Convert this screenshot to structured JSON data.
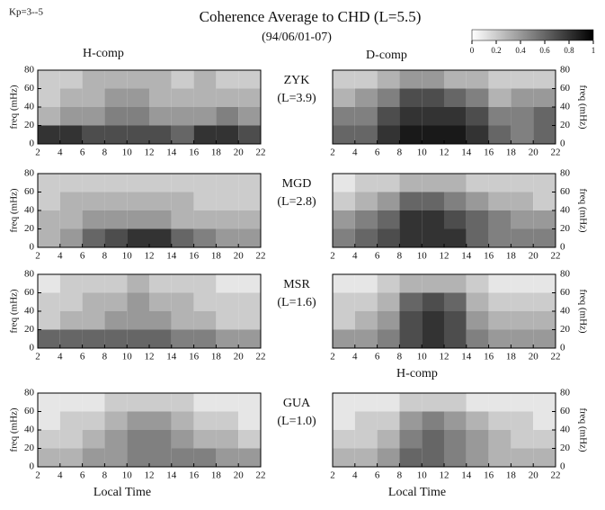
{
  "figure": {
    "kp": "Kp=3--5",
    "title": "Coherence Average to CHD (L=5.5)",
    "subtitle": "(94/06/01-07)",
    "h_header": "H-comp",
    "d_header": "D-comp",
    "colorbar": {
      "lim": [
        0,
        1
      ],
      "ticks": [
        0,
        0.2,
        0.4,
        0.6,
        0.8,
        1
      ]
    },
    "stations": [
      {
        "name": "ZYK",
        "l": "(L=3.9)"
      },
      {
        "name": "MGD",
        "l": "(L=2.8)"
      },
      {
        "name": "MSR",
        "l": "(L=1.6)"
      },
      {
        "name": "GUA",
        "l": "(L=1.0)"
      }
    ]
  },
  "chart_data": [
    {
      "type": "heatmap",
      "yaxis_side": "left",
      "ylabel": "freq (mHz)",
      "xbins": [
        2,
        4,
        6,
        8,
        10,
        12,
        14,
        16,
        18,
        20,
        22
      ],
      "ybins": [
        0,
        20,
        40,
        60,
        80
      ],
      "xlim": [
        2,
        22
      ],
      "ylim": [
        0,
        80
      ],
      "xticks": [
        2,
        4,
        6,
        8,
        10,
        12,
        14,
        16,
        18,
        20,
        22
      ],
      "yticks": [
        0,
        20,
        40,
        60,
        80
      ],
      "values": [
        [
          0.8,
          0.8,
          0.7,
          0.7,
          0.7,
          0.7,
          0.6,
          0.8,
          0.8,
          0.7
        ],
        [
          0.3,
          0.4,
          0.4,
          0.5,
          0.5,
          0.4,
          0.4,
          0.4,
          0.5,
          0.4
        ],
        [
          0.2,
          0.3,
          0.3,
          0.4,
          0.4,
          0.3,
          0.3,
          0.3,
          0.3,
          0.3
        ],
        [
          0.2,
          0.2,
          0.3,
          0.3,
          0.3,
          0.3,
          0.2,
          0.3,
          0.2,
          0.2
        ]
      ]
    },
    {
      "type": "heatmap",
      "yaxis_side": "right",
      "ylabel": "freq (mHz)",
      "xbins": [
        2,
        4,
        6,
        8,
        10,
        12,
        14,
        16,
        18,
        20,
        22
      ],
      "ybins": [
        0,
        20,
        40,
        60,
        80
      ],
      "xlim": [
        2,
        22
      ],
      "ylim": [
        0,
        80
      ],
      "xticks": [
        2,
        4,
        6,
        8,
        10,
        12,
        14,
        16,
        18,
        20,
        22
      ],
      "yticks": [
        0,
        20,
        40,
        60,
        80
      ],
      "values": [
        [
          0.6,
          0.6,
          0.8,
          0.9,
          0.9,
          0.9,
          0.8,
          0.6,
          0.5,
          0.6
        ],
        [
          0.5,
          0.5,
          0.7,
          0.8,
          0.8,
          0.8,
          0.7,
          0.5,
          0.5,
          0.6
        ],
        [
          0.3,
          0.4,
          0.5,
          0.7,
          0.7,
          0.6,
          0.5,
          0.3,
          0.4,
          0.4
        ],
        [
          0.2,
          0.2,
          0.3,
          0.4,
          0.4,
          0.3,
          0.3,
          0.2,
          0.2,
          0.2
        ]
      ]
    },
    {
      "type": "heatmap",
      "yaxis_side": "left",
      "ylabel": "freq (mHz)",
      "xbins": [
        2,
        4,
        6,
        8,
        10,
        12,
        14,
        16,
        18,
        20,
        22
      ],
      "ybins": [
        0,
        20,
        40,
        60,
        80
      ],
      "xlim": [
        2,
        22
      ],
      "ylim": [
        0,
        80
      ],
      "xticks": [
        2,
        4,
        6,
        8,
        10,
        12,
        14,
        16,
        18,
        20,
        22
      ],
      "yticks": [
        0,
        20,
        40,
        60,
        80
      ],
      "values": [
        [
          0.3,
          0.4,
          0.6,
          0.7,
          0.8,
          0.8,
          0.6,
          0.5,
          0.4,
          0.4
        ],
        [
          0.3,
          0.3,
          0.4,
          0.4,
          0.4,
          0.4,
          0.3,
          0.3,
          0.3,
          0.3
        ],
        [
          0.2,
          0.3,
          0.3,
          0.3,
          0.3,
          0.3,
          0.3,
          0.2,
          0.2,
          0.2
        ],
        [
          0.2,
          0.2,
          0.2,
          0.2,
          0.2,
          0.2,
          0.2,
          0.2,
          0.2,
          0.2
        ]
      ]
    },
    {
      "type": "heatmap",
      "yaxis_side": "right",
      "ylabel": "freq (mHz)",
      "xbins": [
        2,
        4,
        6,
        8,
        10,
        12,
        14,
        16,
        18,
        20,
        22
      ],
      "ybins": [
        0,
        20,
        40,
        60,
        80
      ],
      "xlim": [
        2,
        22
      ],
      "ylim": [
        0,
        80
      ],
      "xticks": [
        2,
        4,
        6,
        8,
        10,
        12,
        14,
        16,
        18,
        20,
        22
      ],
      "yticks": [
        0,
        20,
        40,
        60,
        80
      ],
      "values": [
        [
          0.5,
          0.6,
          0.7,
          0.8,
          0.8,
          0.8,
          0.6,
          0.5,
          0.5,
          0.5
        ],
        [
          0.4,
          0.5,
          0.6,
          0.8,
          0.8,
          0.7,
          0.6,
          0.5,
          0.4,
          0.4
        ],
        [
          0.2,
          0.3,
          0.4,
          0.6,
          0.6,
          0.5,
          0.4,
          0.3,
          0.3,
          0.2
        ],
        [
          0.1,
          0.2,
          0.2,
          0.3,
          0.3,
          0.3,
          0.2,
          0.2,
          0.2,
          0.2
        ]
      ]
    },
    {
      "type": "heatmap",
      "yaxis_side": "left",
      "ylabel": "freq (mHz)",
      "xbins": [
        2,
        4,
        6,
        8,
        10,
        12,
        14,
        16,
        18,
        20,
        22
      ],
      "ybins": [
        0,
        20,
        40,
        60,
        80
      ],
      "xlim": [
        2,
        22
      ],
      "ylim": [
        0,
        80
      ],
      "xticks": [
        2,
        4,
        6,
        8,
        10,
        12,
        14,
        16,
        18,
        20,
        22
      ],
      "yticks": [
        0,
        20,
        40,
        60,
        80
      ],
      "values": [
        [
          0.6,
          0.6,
          0.6,
          0.6,
          0.6,
          0.6,
          0.5,
          0.5,
          0.4,
          0.4
        ],
        [
          0.2,
          0.3,
          0.3,
          0.4,
          0.4,
          0.4,
          0.3,
          0.3,
          0.2,
          0.2
        ],
        [
          0.2,
          0.2,
          0.3,
          0.3,
          0.4,
          0.3,
          0.3,
          0.2,
          0.2,
          0.2
        ],
        [
          0.1,
          0.2,
          0.2,
          0.2,
          0.3,
          0.2,
          0.2,
          0.2,
          0.1,
          0.1
        ]
      ]
    },
    {
      "type": "heatmap",
      "yaxis_side": "right",
      "ylabel": "freq (mHz)",
      "xlabel": "H-comp",
      "xbins": [
        2,
        4,
        6,
        8,
        10,
        12,
        14,
        16,
        18,
        20,
        22
      ],
      "ybins": [
        0,
        20,
        40,
        60,
        80
      ],
      "xlim": [
        2,
        22
      ],
      "ylim": [
        0,
        80
      ],
      "xticks": [
        2,
        4,
        6,
        8,
        10,
        12,
        14,
        16,
        18,
        20,
        22
      ],
      "yticks": [
        0,
        20,
        40,
        60,
        80
      ],
      "values": [
        [
          0.4,
          0.4,
          0.5,
          0.7,
          0.8,
          0.7,
          0.5,
          0.4,
          0.4,
          0.4
        ],
        [
          0.2,
          0.3,
          0.4,
          0.7,
          0.8,
          0.7,
          0.4,
          0.3,
          0.3,
          0.3
        ],
        [
          0.2,
          0.2,
          0.3,
          0.6,
          0.7,
          0.6,
          0.3,
          0.2,
          0.2,
          0.2
        ],
        [
          0.1,
          0.1,
          0.2,
          0.3,
          0.3,
          0.3,
          0.2,
          0.1,
          0.1,
          0.1
        ]
      ]
    },
    {
      "type": "heatmap",
      "yaxis_side": "left",
      "ylabel": "freq (mHz)",
      "xlabel": "Local Time",
      "xbins": [
        2,
        4,
        6,
        8,
        10,
        12,
        14,
        16,
        18,
        20,
        22
      ],
      "ybins": [
        0,
        20,
        40,
        60,
        80
      ],
      "xlim": [
        2,
        22
      ],
      "ylim": [
        0,
        80
      ],
      "xticks": [
        2,
        4,
        6,
        8,
        10,
        12,
        14,
        16,
        18,
        20,
        22
      ],
      "yticks": [
        0,
        20,
        40,
        60,
        80
      ],
      "values": [
        [
          0.3,
          0.3,
          0.4,
          0.4,
          0.5,
          0.5,
          0.5,
          0.5,
          0.4,
          0.4
        ],
        [
          0.2,
          0.2,
          0.3,
          0.4,
          0.5,
          0.5,
          0.4,
          0.3,
          0.3,
          0.2
        ],
        [
          0.1,
          0.2,
          0.2,
          0.3,
          0.4,
          0.4,
          0.3,
          0.2,
          0.2,
          0.1
        ],
        [
          0.1,
          0.1,
          0.1,
          0.2,
          0.2,
          0.2,
          0.2,
          0.1,
          0.1,
          0.1
        ]
      ]
    },
    {
      "type": "heatmap",
      "yaxis_side": "right",
      "ylabel": "freq (mHz)",
      "xlabel": "Local Time",
      "xbins": [
        2,
        4,
        6,
        8,
        10,
        12,
        14,
        16,
        18,
        20,
        22
      ],
      "ybins": [
        0,
        20,
        40,
        60,
        80
      ],
      "xlim": [
        2,
        22
      ],
      "ylim": [
        0,
        80
      ],
      "xticks": [
        2,
        4,
        6,
        8,
        10,
        12,
        14,
        16,
        18,
        20,
        22
      ],
      "yticks": [
        0,
        20,
        40,
        60,
        80
      ],
      "values": [
        [
          0.3,
          0.3,
          0.4,
          0.6,
          0.6,
          0.5,
          0.4,
          0.3,
          0.3,
          0.3
        ],
        [
          0.2,
          0.2,
          0.3,
          0.5,
          0.6,
          0.5,
          0.4,
          0.3,
          0.2,
          0.2
        ],
        [
          0.1,
          0.2,
          0.2,
          0.4,
          0.5,
          0.4,
          0.3,
          0.2,
          0.2,
          0.1
        ],
        [
          0.1,
          0.1,
          0.1,
          0.2,
          0.2,
          0.2,
          0.1,
          0.1,
          0.1,
          0.1
        ]
      ]
    }
  ]
}
